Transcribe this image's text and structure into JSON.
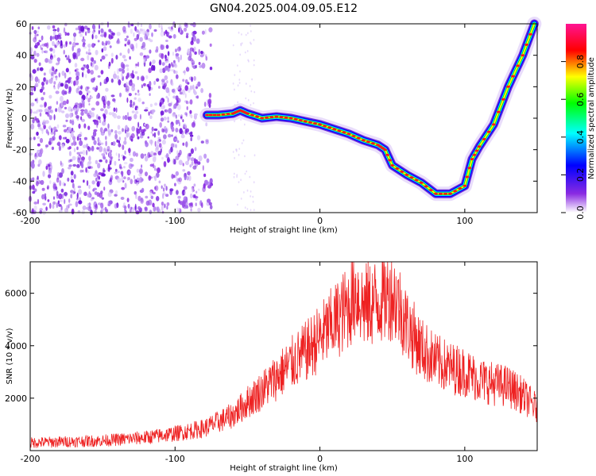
{
  "title": "GN04.2025.004.09.05.E12",
  "chart_data": [
    {
      "type": "heatmap",
      "xlabel": "Height of straight line (km)",
      "ylabel": "Frequency (Hz)",
      "xlim": [
        -200,
        150
      ],
      "ylim": [
        -60,
        60
      ],
      "xticks": [
        -200,
        -100,
        0,
        100
      ],
      "yticks": [
        -60,
        -40,
        -20,
        0,
        20,
        40,
        60
      ],
      "colorbar": {
        "label": "Normalized spectral amplitude",
        "range": [
          0,
          1
        ],
        "ticks": [
          "0.0",
          "0.2",
          "0.4",
          "0.6",
          "0.8"
        ],
        "colors": [
          "#ffffff",
          "#8a2be2",
          "#0000ff",
          "#00ffff",
          "#00ff00",
          "#ffff00",
          "#ff0000",
          "#ff1493"
        ]
      },
      "noise_region": {
        "x": [
          -200,
          -75
        ],
        "y": [
          -60,
          60
        ],
        "amplitude": 0.1
      },
      "ridge": {
        "x": [
          -78,
          -70,
          -60,
          -55,
          -50,
          -40,
          -30,
          -20,
          -10,
          0,
          10,
          20,
          30,
          40,
          45,
          50,
          60,
          70,
          80,
          90,
          100,
          105,
          110,
          120,
          130,
          140,
          148
        ],
        "y": [
          2,
          2,
          3,
          5,
          3,
          0,
          1,
          0,
          -2,
          -4,
          -7,
          -10,
          -14,
          -17,
          -20,
          -30,
          -36,
          -41,
          -48,
          -48,
          -43,
          -26,
          -18,
          -4,
          20,
          40,
          60
        ]
      }
    },
    {
      "type": "line",
      "xlabel": "Height of straight line (km)",
      "ylabel": "SNR (10 * v/v)",
      "xlim": [
        -200,
        150
      ],
      "ylim": [
        0,
        7200
      ],
      "xticks": [
        -200,
        -100,
        0,
        100
      ],
      "yticks": [
        2000,
        4000,
        6000
      ],
      "color": "#ee2222",
      "envelope": {
        "x": [
          -200,
          -150,
          -120,
          -100,
          -80,
          -60,
          -50,
          -40,
          -30,
          -20,
          -10,
          0,
          10,
          20,
          25,
          30,
          40,
          50,
          55,
          60,
          70,
          80,
          90,
          100,
          110,
          120,
          130,
          140,
          150
        ],
        "y": [
          300,
          380,
          500,
          650,
          850,
          1350,
          1850,
          2300,
          2800,
          3300,
          3750,
          4300,
          4900,
          5500,
          6100,
          5500,
          5700,
          6000,
          5500,
          4800,
          3900,
          3400,
          3150,
          3000,
          2700,
          2550,
          2450,
          2100,
          1600
        ]
      }
    }
  ]
}
